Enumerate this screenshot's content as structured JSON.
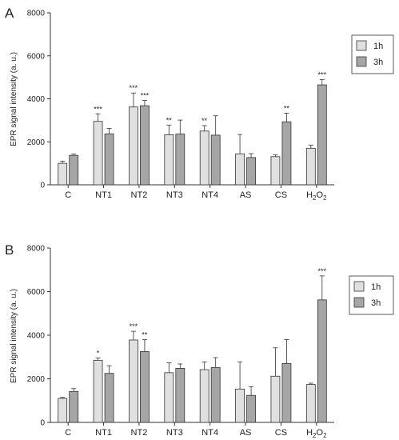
{
  "chart_data": [
    {
      "panel": "A",
      "type": "bar",
      "categories": [
        "C",
        "NT1",
        "NT2",
        "NT3",
        "NT4",
        "AS",
        "CS",
        "H2O2"
      ],
      "ylabel": "EPR signal intensity (a. u.)",
      "ylim": [
        0,
        8000
      ],
      "yticks": [
        "0",
        "2000",
        "4000",
        "6000",
        "8000"
      ],
      "legend_position": "top-right",
      "series": [
        {
          "name": "1h",
          "color": "#e0e0e0",
          "values": [
            1000,
            2950,
            3620,
            2330,
            2500,
            1440,
            1310,
            1700
          ],
          "errors": [
            100,
            350,
            650,
            450,
            250,
            900,
            80,
            150
          ],
          "significance": [
            "",
            "***",
            "***",
            "**",
            "**",
            "",
            "",
            ""
          ]
        },
        {
          "name": "3h",
          "color": "#a6a6a6",
          "values": [
            1370,
            2370,
            3680,
            2360,
            2310,
            1270,
            2930,
            4650
          ],
          "errors": [
            60,
            250,
            250,
            650,
            900,
            180,
            400,
            250
          ],
          "significance": [
            "",
            "",
            "***",
            "",
            "",
            "",
            "**",
            "***"
          ]
        }
      ]
    },
    {
      "panel": "B",
      "type": "bar",
      "categories": [
        "C",
        "NT1",
        "NT2",
        "NT3",
        "NT4",
        "AS",
        "CS",
        "H2O2"
      ],
      "ylabel": "EPR signal intensity (a. u.)",
      "ylim": [
        0,
        8000
      ],
      "yticks": [
        "0",
        "2000",
        "4000",
        "6000",
        "8000"
      ],
      "legend_position": "top-right",
      "series": [
        {
          "name": "1h",
          "color": "#e0e0e0",
          "values": [
            1100,
            2850,
            3780,
            2280,
            2420,
            1530,
            2120,
            1740
          ],
          "errors": [
            50,
            100,
            400,
            450,
            350,
            1250,
            1300,
            60
          ],
          "significance": [
            "",
            "*",
            "***",
            "",
            "",
            "",
            "",
            ""
          ]
        },
        {
          "name": "3h",
          "color": "#a6a6a6",
          "values": [
            1420,
            2250,
            3250,
            2480,
            2520,
            1240,
            2700,
            5620
          ],
          "errors": [
            130,
            350,
            550,
            200,
            450,
            400,
            1100,
            1100
          ],
          "significance": [
            "",
            "",
            "**",
            "",
            "",
            "",
            "",
            "***"
          ]
        }
      ]
    }
  ]
}
